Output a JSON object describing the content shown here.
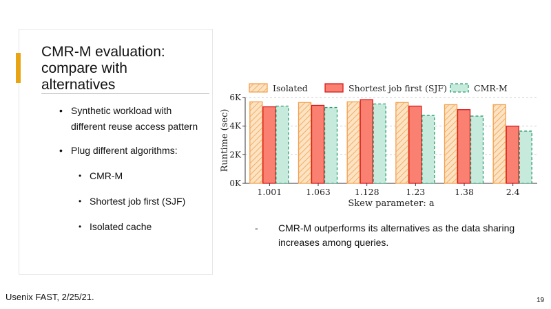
{
  "slide": {
    "title_line1": "CMR-M evaluation:",
    "title_line2": "compare with",
    "title_line3": "alternatives",
    "bullets": [
      "Synthetic workload with different reuse access pattern",
      "Plug different algorithms:"
    ],
    "sub_bullets": [
      "CMR-M",
      "Shortest job first (SJF)",
      "Isolated cache"
    ],
    "bullet_glyph": "•",
    "note_dash": "-",
    "note": "CMR-M outperforms its alternatives as the data sharing increases among queries.",
    "footer": "Usenix FAST, 2/25/21.",
    "page_number": "19",
    "colors": {
      "accent": "#e8a412"
    }
  },
  "chart_data": {
    "type": "bar",
    "categories": [
      "1.001",
      "1.063",
      "1.128",
      "1.23",
      "1.38",
      "2.4"
    ],
    "series": [
      {
        "name": "Isolated",
        "values": [
          5700,
          5650,
          5700,
          5650,
          5500,
          5500
        ],
        "fill": "#fbe3c4",
        "stroke": "#f5a04a",
        "pattern": "hatch"
      },
      {
        "name": "Shortest job first (SJF)",
        "values": [
          5350,
          5450,
          5850,
          5400,
          5150,
          4000
        ],
        "fill": "#fa8072",
        "stroke": "#d7191c",
        "pattern": "solid"
      },
      {
        "name": "CMR-M",
        "values": [
          5400,
          5300,
          5550,
          4750,
          4700,
          3650
        ],
        "fill": "#c6eadc",
        "stroke": "#2a9d6f",
        "pattern": "dashed"
      }
    ],
    "xlabel": "Skew parameter: a",
    "ylabel": "Runtime (sec)",
    "ylim": [
      0,
      6000
    ],
    "yticks": [
      0,
      2000,
      4000,
      6000
    ],
    "ytick_labels": [
      "0K",
      "2K",
      "4K",
      "6K"
    ],
    "grid": "horizontal dashed",
    "legend": "top"
  }
}
